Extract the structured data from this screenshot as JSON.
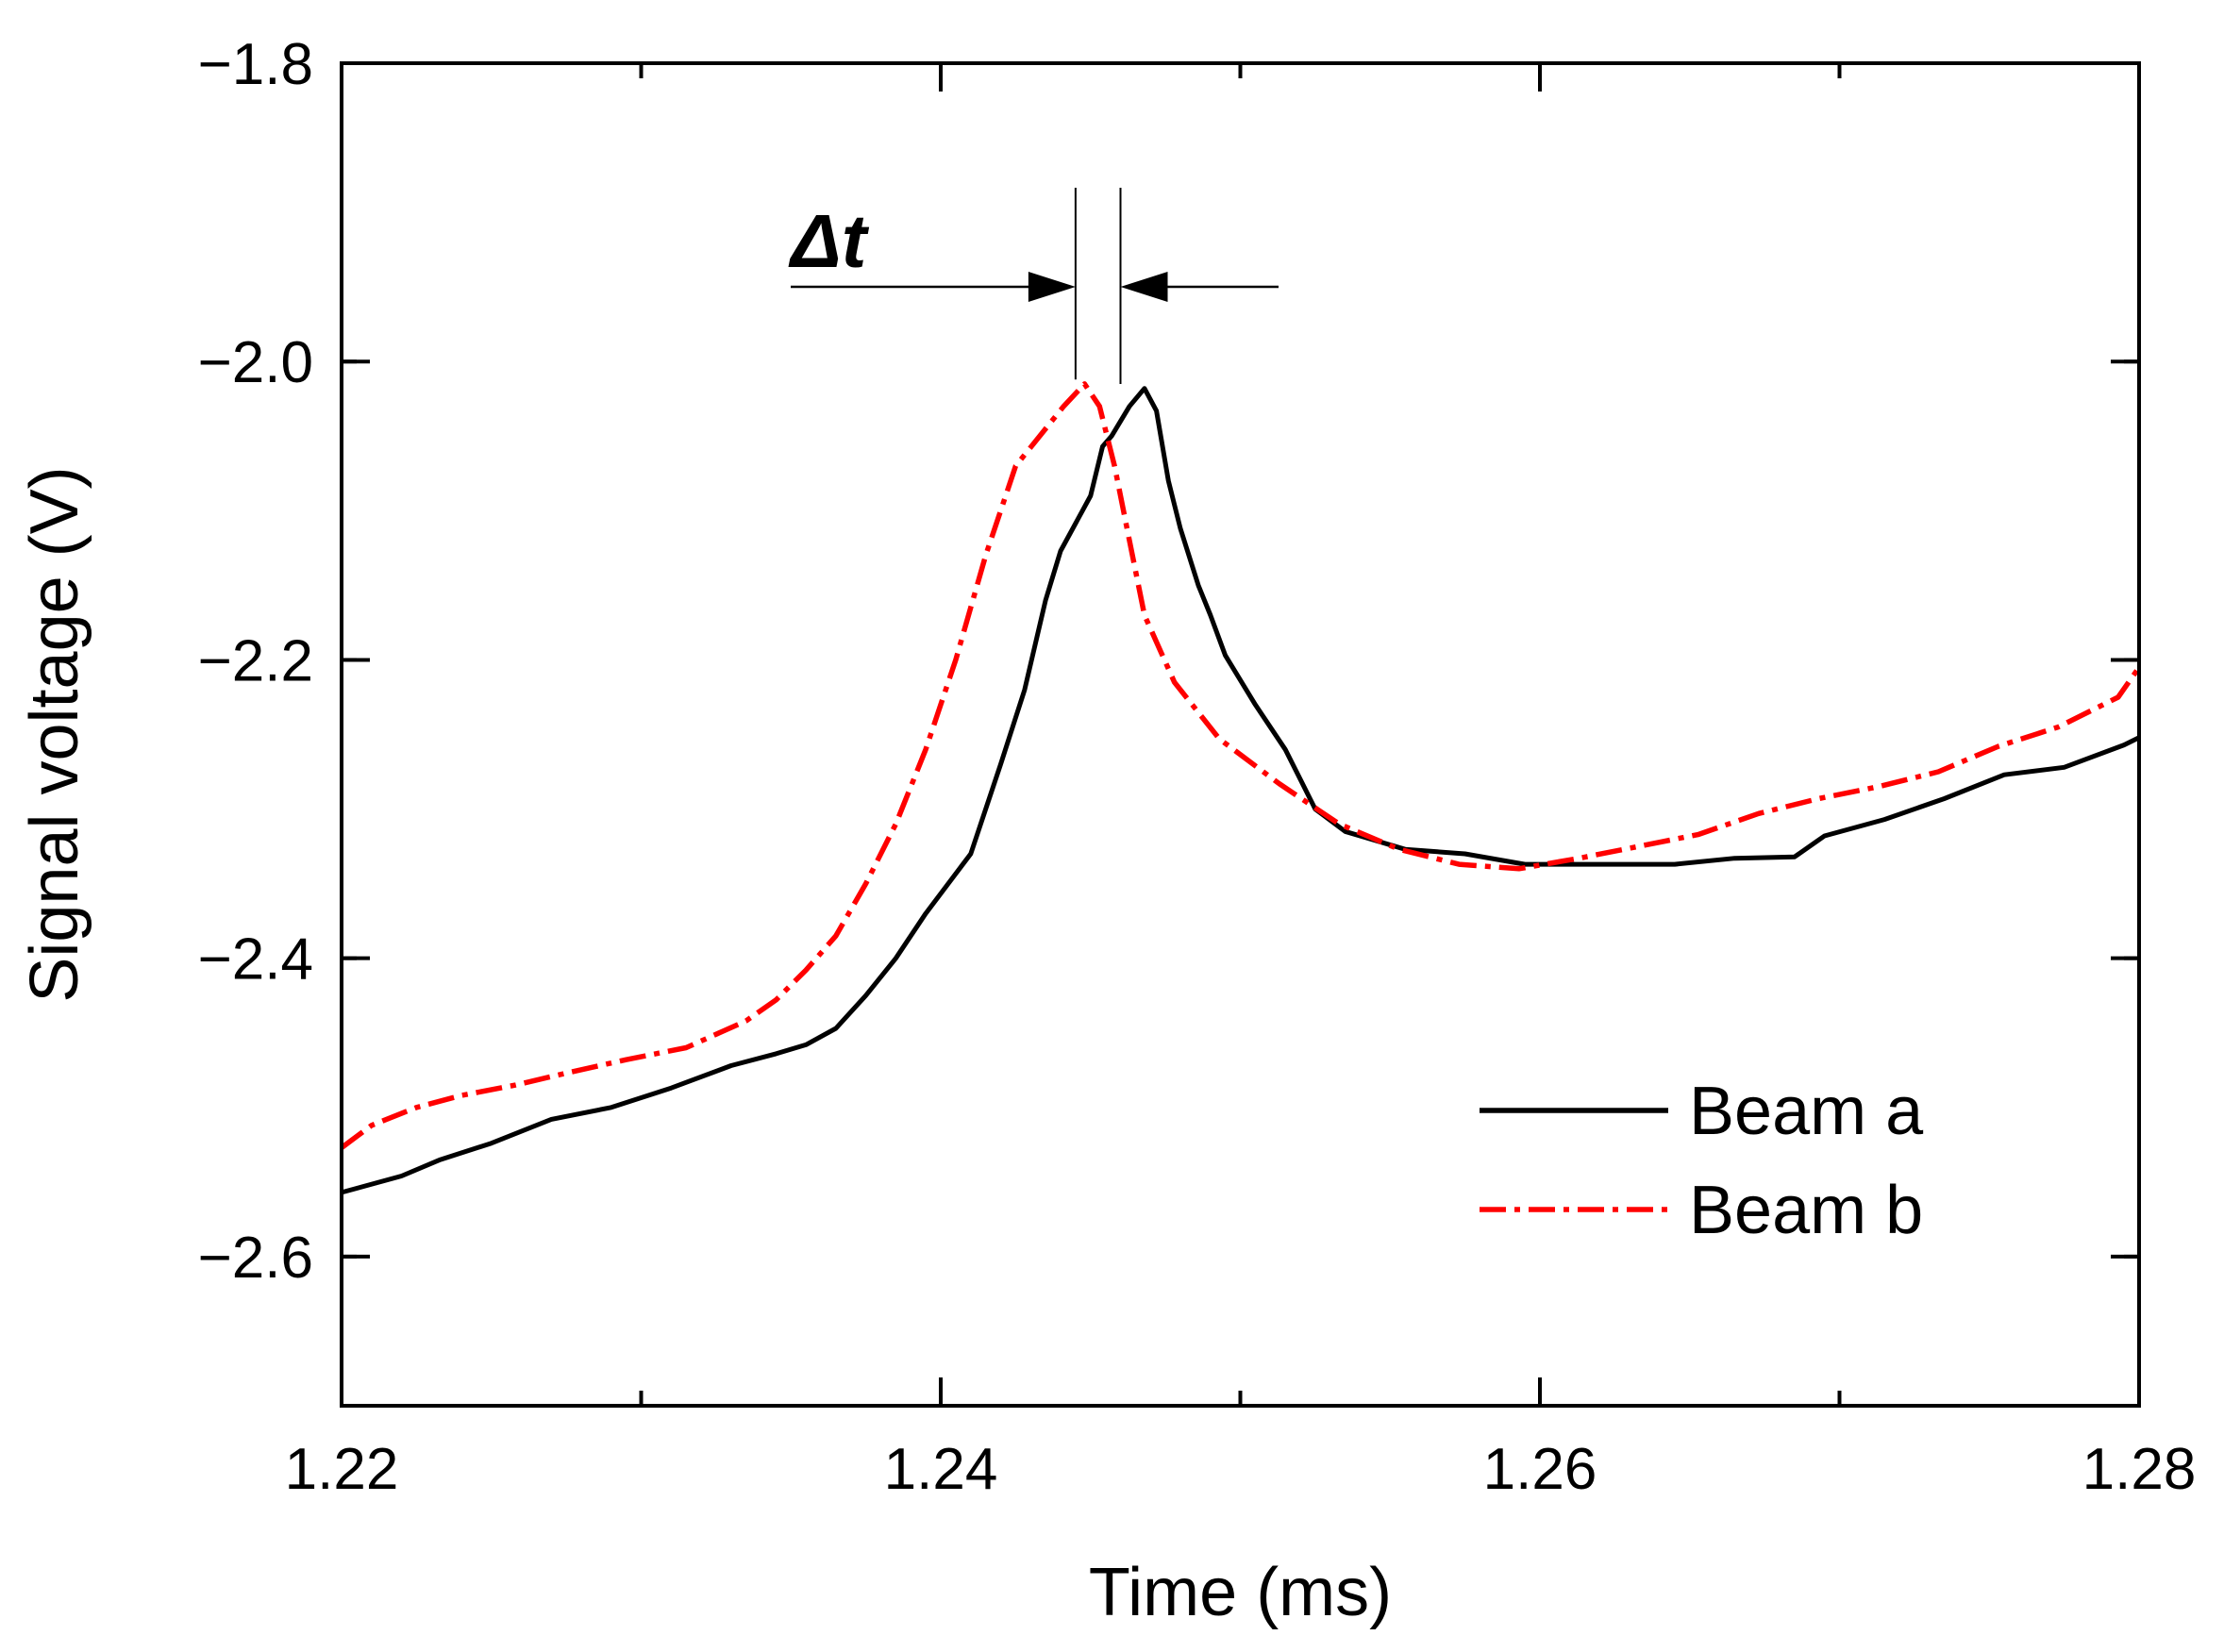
{
  "chart_data": {
    "type": "line",
    "title": "",
    "xlabel": "Time (ms)",
    "ylabel": "Signal voltage (V)",
    "xlim": [
      1.22,
      1.28
    ],
    "ylim": [
      -2.7,
      -1.8
    ],
    "xticks": [
      1.22,
      1.24,
      1.26,
      1.28
    ],
    "xtick_labels": [
      "1.22",
      "1.24",
      "1.26",
      "1.28"
    ],
    "yticks": [
      -2.6,
      -2.4,
      -2.2,
      -2.0,
      -1.8
    ],
    "ytick_labels": [
      "−2.6",
      "−2.4",
      "−2.2",
      "−2.0",
      "−1.8"
    ],
    "grid": false,
    "legend_position": "bottom-right",
    "annotation": {
      "label": "Δt",
      "from": 1.2445,
      "to": 1.246
    },
    "series": [
      {
        "name": "Beam a",
        "color": "#000000",
        "style": "solid",
        "points": [
          [
            1.22,
            -2.557
          ],
          [
            1.222,
            -2.546
          ],
          [
            1.2233,
            -2.535
          ],
          [
            1.225,
            -2.524
          ],
          [
            1.227,
            -2.508
          ],
          [
            1.229,
            -2.5
          ],
          [
            1.231,
            -2.487
          ],
          [
            1.233,
            -2.472
          ],
          [
            1.2345,
            -2.464
          ],
          [
            1.2355,
            -2.458
          ],
          [
            1.2365,
            -2.447
          ],
          [
            1.2375,
            -2.425
          ],
          [
            1.2385,
            -2.4
          ],
          [
            1.2395,
            -2.37
          ],
          [
            1.241,
            -2.33
          ],
          [
            1.242,
            -2.27
          ],
          [
            1.2428,
            -2.22
          ],
          [
            1.2435,
            -2.16
          ],
          [
            1.244,
            -2.127
          ],
          [
            1.245,
            -2.09
          ],
          [
            1.2454,
            -2.057
          ],
          [
            1.2457,
            -2.05
          ],
          [
            1.2463,
            -2.03
          ],
          [
            1.2468,
            -2.018
          ],
          [
            1.2472,
            -2.033
          ],
          [
            1.2476,
            -2.08
          ],
          [
            1.248,
            -2.112
          ],
          [
            1.2486,
            -2.15
          ],
          [
            1.249,
            -2.17
          ],
          [
            1.2495,
            -2.197
          ],
          [
            1.2505,
            -2.23
          ],
          [
            1.2515,
            -2.26
          ],
          [
            1.252,
            -2.28
          ],
          [
            1.2525,
            -2.3
          ],
          [
            1.2535,
            -2.315
          ],
          [
            1.2555,
            -2.327
          ],
          [
            1.2575,
            -2.33
          ],
          [
            1.2595,
            -2.337
          ],
          [
            1.2645,
            -2.337
          ],
          [
            1.2665,
            -2.333
          ],
          [
            1.2685,
            -2.332
          ],
          [
            1.2695,
            -2.318
          ],
          [
            1.2715,
            -2.307
          ],
          [
            1.2735,
            -2.293
          ],
          [
            1.2755,
            -2.277
          ],
          [
            1.2775,
            -2.272
          ],
          [
            1.2795,
            -2.257
          ],
          [
            1.28,
            -2.252
          ]
        ]
      },
      {
        "name": "Beam b",
        "color": "#ff0000",
        "style": "dashdot",
        "points": [
          [
            1.22,
            -2.527
          ],
          [
            1.221,
            -2.512
          ],
          [
            1.2225,
            -2.5
          ],
          [
            1.224,
            -2.492
          ],
          [
            1.2258,
            -2.485
          ],
          [
            1.2275,
            -2.477
          ],
          [
            1.2295,
            -2.468
          ],
          [
            1.2315,
            -2.46
          ],
          [
            1.2335,
            -2.442
          ],
          [
            1.2345,
            -2.428
          ],
          [
            1.2355,
            -2.408
          ],
          [
            1.2365,
            -2.385
          ],
          [
            1.2375,
            -2.35
          ],
          [
            1.2385,
            -2.31
          ],
          [
            1.2395,
            -2.26
          ],
          [
            1.2405,
            -2.2
          ],
          [
            1.2415,
            -2.13
          ],
          [
            1.2425,
            -2.07
          ],
          [
            1.2433,
            -2.05
          ],
          [
            1.2441,
            -2.03
          ],
          [
            1.2448,
            -2.015
          ],
          [
            1.2453,
            -2.03
          ],
          [
            1.2458,
            -2.07
          ],
          [
            1.2463,
            -2.12
          ],
          [
            1.2468,
            -2.17
          ],
          [
            1.2478,
            -2.215
          ],
          [
            1.2493,
            -2.253
          ],
          [
            1.2513,
            -2.283
          ],
          [
            1.2533,
            -2.31
          ],
          [
            1.2553,
            -2.327
          ],
          [
            1.2573,
            -2.337
          ],
          [
            1.2593,
            -2.34
          ],
          [
            1.2613,
            -2.333
          ],
          [
            1.2633,
            -2.325
          ],
          [
            1.2653,
            -2.317
          ],
          [
            1.2673,
            -2.303
          ],
          [
            1.2693,
            -2.293
          ],
          [
            1.2713,
            -2.285
          ],
          [
            1.2733,
            -2.275
          ],
          [
            1.2753,
            -2.258
          ],
          [
            1.2773,
            -2.245
          ],
          [
            1.2793,
            -2.225
          ],
          [
            1.28,
            -2.205
          ]
        ]
      }
    ]
  }
}
